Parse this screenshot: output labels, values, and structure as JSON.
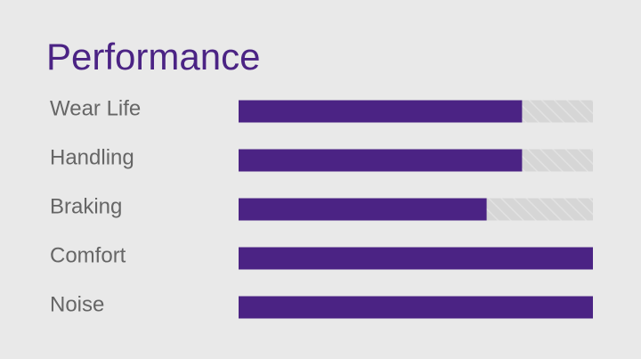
{
  "chart_data": {
    "type": "bar",
    "orientation": "horizontal",
    "title": "Performance",
    "categories": [
      "Wear Life",
      "Handling",
      "Braking",
      "Comfort",
      "Noise"
    ],
    "values": [
      8,
      8,
      7,
      10,
      10
    ],
    "color": "#4b2384",
    "xlim": [
      0,
      10
    ]
  }
}
